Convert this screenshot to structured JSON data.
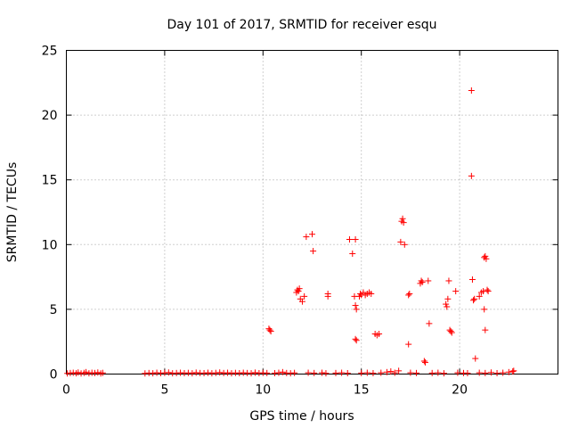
{
  "chart_data": {
    "type": "scatter",
    "title": "Day 101 of 2017, SRMTID for receiver esqu",
    "xlabel": "GPS time / hours",
    "ylabel": "SRMTID / TECUs",
    "xlim": [
      0,
      25
    ],
    "ylim": [
      0,
      25
    ],
    "xticks": [
      0,
      5,
      10,
      15,
      20
    ],
    "yticks": [
      0,
      5,
      10,
      15,
      20,
      25
    ],
    "grid": true,
    "marker": "+",
    "color": "#ff0000",
    "series": [
      {
        "name": "SRMTID",
        "points": [
          [
            0.05,
            0.05
          ],
          [
            0.2,
            0.08
          ],
          [
            0.35,
            0.1
          ],
          [
            0.5,
            0.06
          ],
          [
            0.6,
            0.12
          ],
          [
            0.75,
            0.05
          ],
          [
            0.9,
            0.09
          ],
          [
            1.0,
            0.15
          ],
          [
            1.15,
            0.06
          ],
          [
            1.3,
            0.1
          ],
          [
            1.45,
            0.08
          ],
          [
            1.6,
            0.12
          ],
          [
            1.75,
            0.05
          ],
          [
            1.85,
            0.09
          ],
          [
            4.0,
            0.05
          ],
          [
            4.2,
            0.08
          ],
          [
            4.4,
            0.06
          ],
          [
            4.6,
            0.1
          ],
          [
            4.8,
            0.07
          ],
          [
            5.0,
            0.09
          ],
          [
            5.2,
            0.12
          ],
          [
            5.4,
            0.06
          ],
          [
            5.6,
            0.08
          ],
          [
            5.8,
            0.1
          ],
          [
            6.0,
            0.07
          ],
          [
            6.2,
            0.09
          ],
          [
            6.4,
            0.06
          ],
          [
            6.6,
            0.11
          ],
          [
            6.8,
            0.08
          ],
          [
            7.0,
            0.07
          ],
          [
            7.2,
            0.1
          ],
          [
            7.4,
            0.06
          ],
          [
            7.6,
            0.09
          ],
          [
            7.8,
            0.12
          ],
          [
            8.0,
            0.08
          ],
          [
            8.2,
            0.1
          ],
          [
            8.4,
            0.06
          ],
          [
            8.6,
            0.09
          ],
          [
            8.8,
            0.07
          ],
          [
            9.0,
            0.1
          ],
          [
            9.2,
            0.08
          ],
          [
            9.4,
            0.06
          ],
          [
            9.6,
            0.11
          ],
          [
            9.8,
            0.07
          ],
          [
            10.0,
            0.09
          ],
          [
            10.2,
            0.08
          ],
          [
            10.6,
            0.07
          ],
          [
            10.8,
            0.1
          ],
          [
            11.0,
            0.15
          ],
          [
            11.2,
            0.08
          ],
          [
            11.4,
            0.06
          ],
          [
            11.6,
            0.09
          ],
          [
            10.3,
            3.5
          ],
          [
            10.35,
            3.4
          ],
          [
            10.4,
            3.3
          ],
          [
            11.7,
            6.3
          ],
          [
            11.75,
            6.5
          ],
          [
            11.8,
            6.4
          ],
          [
            11.85,
            6.6
          ],
          [
            11.9,
            5.8
          ],
          [
            12.0,
            5.6
          ],
          [
            12.1,
            6.0
          ],
          [
            12.2,
            10.6
          ],
          [
            12.5,
            10.8
          ],
          [
            12.55,
            9.5
          ],
          [
            12.3,
            0.1
          ],
          [
            12.6,
            0.08
          ],
          [
            13.0,
            0.1
          ],
          [
            13.2,
            0.06
          ],
          [
            13.3,
            6.0
          ],
          [
            13.3,
            6.2
          ],
          [
            13.7,
            0.08
          ],
          [
            14.0,
            0.1
          ],
          [
            14.3,
            0.07
          ],
          [
            14.4,
            10.4
          ],
          [
            14.55,
            9.3
          ],
          [
            14.7,
            10.4
          ],
          [
            14.65,
            6.0
          ],
          [
            14.7,
            5.3
          ],
          [
            14.75,
            5.0
          ],
          [
            14.7,
            2.7
          ],
          [
            14.75,
            2.6
          ],
          [
            14.9,
            6.0
          ],
          [
            14.95,
            6.2
          ],
          [
            15.0,
            6.1
          ],
          [
            15.1,
            6.3
          ],
          [
            15.2,
            6.1
          ],
          [
            15.3,
            6.2
          ],
          [
            15.4,
            6.3
          ],
          [
            15.5,
            6.2
          ],
          [
            15.0,
            0.08
          ],
          [
            15.3,
            0.1
          ],
          [
            15.6,
            0.07
          ],
          [
            15.7,
            3.1
          ],
          [
            15.8,
            3.0
          ],
          [
            15.9,
            3.1
          ],
          [
            16.0,
            0.1
          ],
          [
            16.3,
            0.15
          ],
          [
            16.5,
            0.2
          ],
          [
            16.7,
            0.1
          ],
          [
            16.9,
            0.25
          ],
          [
            17.0,
            10.2
          ],
          [
            17.05,
            11.8
          ],
          [
            17.1,
            12.0
          ],
          [
            17.15,
            11.7
          ],
          [
            17.2,
            10.0
          ],
          [
            17.4,
            6.1
          ],
          [
            17.45,
            6.2
          ],
          [
            17.4,
            2.3
          ],
          [
            17.5,
            0.1
          ],
          [
            17.8,
            0.08
          ],
          [
            18.0,
            7.0
          ],
          [
            18.05,
            7.2
          ],
          [
            18.1,
            7.1
          ],
          [
            18.2,
            1.0
          ],
          [
            18.25,
            0.9
          ],
          [
            18.4,
            7.2
          ],
          [
            18.45,
            3.9
          ],
          [
            18.6,
            0.08
          ],
          [
            18.9,
            0.1
          ],
          [
            19.2,
            0.06
          ],
          [
            19.3,
            5.4
          ],
          [
            19.35,
            5.2
          ],
          [
            19.4,
            5.8
          ],
          [
            19.45,
            7.2
          ],
          [
            19.5,
            3.4
          ],
          [
            19.55,
            3.3
          ],
          [
            19.6,
            3.2
          ],
          [
            19.8,
            6.4
          ],
          [
            19.9,
            0.1
          ],
          [
            20.2,
            0.08
          ],
          [
            20.4,
            0.07
          ],
          [
            20.6,
            21.9
          ],
          [
            20.6,
            15.3
          ],
          [
            20.65,
            7.3
          ],
          [
            20.7,
            5.7
          ],
          [
            20.75,
            5.8
          ],
          [
            20.8,
            1.2
          ],
          [
            21.0,
            6.0
          ],
          [
            21.1,
            6.3
          ],
          [
            21.2,
            6.4
          ],
          [
            21.25,
            5.0
          ],
          [
            21.3,
            3.4
          ],
          [
            21.25,
            9.0
          ],
          [
            21.3,
            9.1
          ],
          [
            21.35,
            8.9
          ],
          [
            21.4,
            6.5
          ],
          [
            21.45,
            6.4
          ],
          [
            21.0,
            0.1
          ],
          [
            21.3,
            0.08
          ],
          [
            21.6,
            0.12
          ],
          [
            21.9,
            0.07
          ],
          [
            22.2,
            0.1
          ],
          [
            22.5,
            0.15
          ],
          [
            22.7,
            0.2
          ],
          [
            22.75,
            0.25
          ]
        ]
      }
    ]
  }
}
